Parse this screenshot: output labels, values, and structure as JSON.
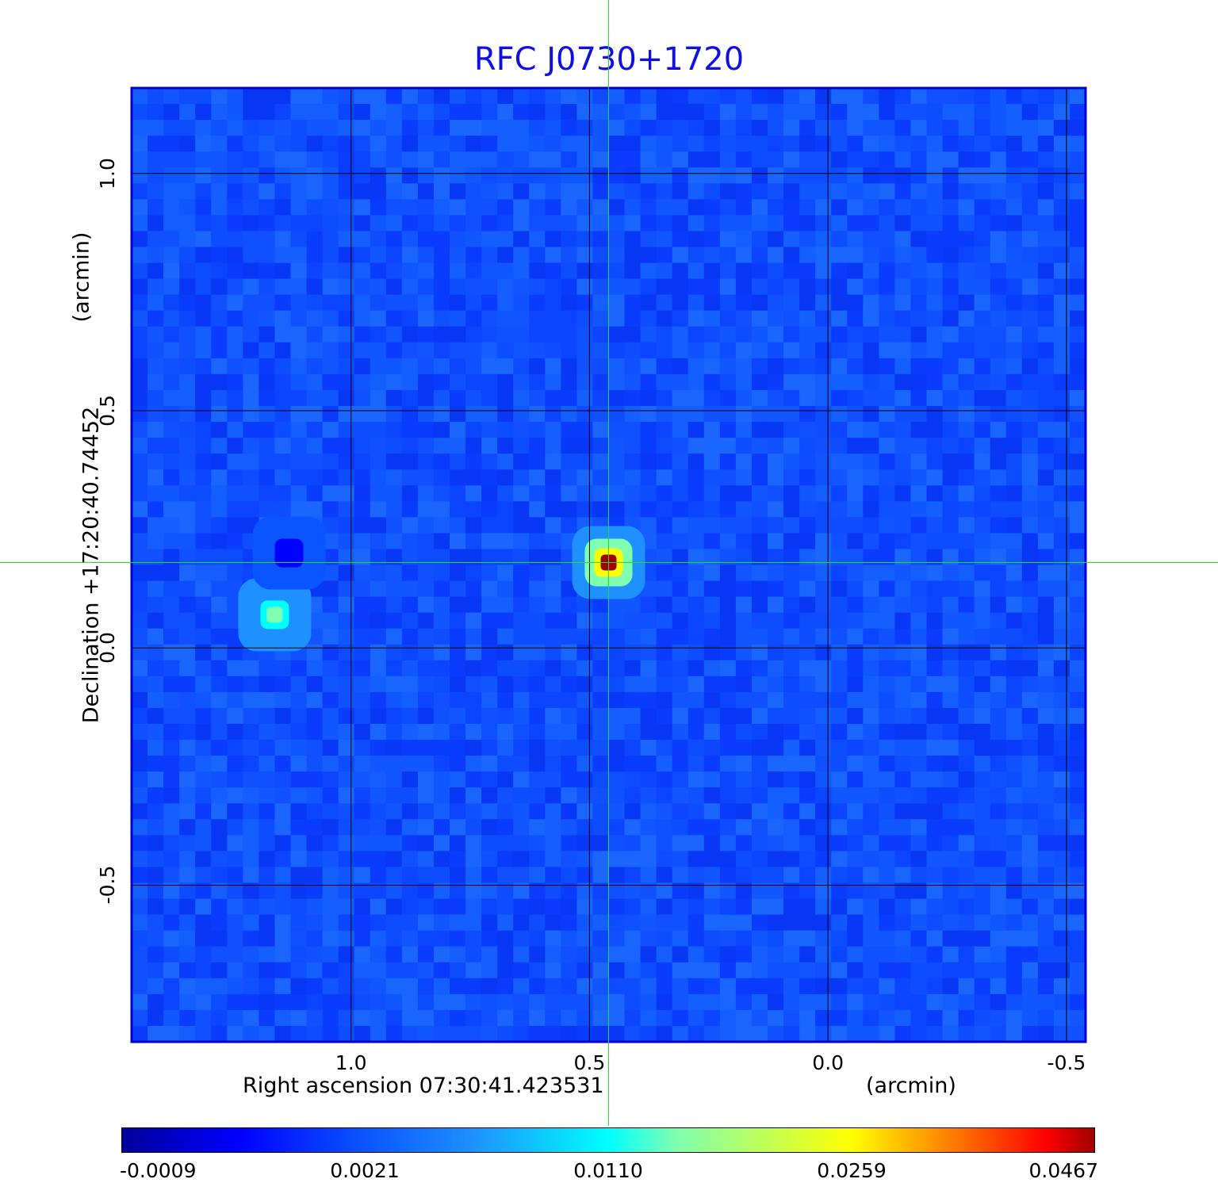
{
  "chart_data": {
    "type": "heatmap",
    "title": "RFC J0730+1720",
    "xlabel": "Right ascension  07:30:41.423531",
    "xunit": "(arcmin)",
    "ylabel": "Declination  +17:20:40.74452",
    "yunit": "(arcmin)",
    "x_ticks": [
      "1.0",
      "0.5",
      "0.0",
      "-0.5"
    ],
    "x_tick_values": [
      1.0,
      0.5,
      0.0,
      -0.5
    ],
    "y_ticks": [
      "1.0",
      "0.5",
      "0.0",
      "-0.5"
    ],
    "y_tick_values": [
      1.0,
      0.5,
      0.0,
      -0.5
    ],
    "xlim": [
      1.46,
      -0.54
    ],
    "ylim": [
      -0.83,
      1.18
    ],
    "grid": true,
    "crosshair": {
      "x": 0.46,
      "y": 0.18,
      "color": "#22dd22"
    },
    "colormap": "jet",
    "colorbar_ticks": [
      "-0.0009",
      "0.0021",
      "0.0110",
      "0.0259",
      "0.0467"
    ],
    "colorbar_values": [
      -0.0009,
      0.0021,
      0.011,
      0.0259,
      0.0467
    ],
    "sources": [
      {
        "x": 0.46,
        "y": 0.18,
        "peak": 0.0467
      },
      {
        "x": 1.16,
        "y": 0.07,
        "peak": 0.028
      },
      {
        "x": 1.13,
        "y": 0.2,
        "peak": 0.005
      }
    ]
  }
}
